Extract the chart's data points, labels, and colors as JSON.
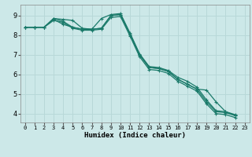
{
  "xlabel": "Humidex (Indice chaleur)",
  "x_ticks": [
    0,
    1,
    2,
    3,
    4,
    5,
    6,
    7,
    8,
    9,
    10,
    11,
    12,
    13,
    14,
    15,
    16,
    17,
    18,
    19,
    20,
    21,
    22,
    23
  ],
  "y_ticks": [
    4,
    5,
    6,
    7,
    8,
    9
  ],
  "xlim": [
    -0.5,
    23.5
  ],
  "ylim": [
    3.55,
    9.55
  ],
  "bg_color": "#cce8e8",
  "grid_color": "#b8d8d8",
  "line_color": "#1a7a6a",
  "series": [
    [
      8.4,
      8.4,
      8.4,
      8.8,
      8.55,
      8.4,
      8.3,
      8.3,
      8.35,
      9.0,
      9.05,
      8.05,
      7.0,
      6.35,
      6.3,
      6.15,
      5.75,
      5.5,
      5.25,
      4.6,
      4.1,
      4.05,
      3.9
    ],
    [
      8.4,
      8.4,
      8.4,
      8.85,
      8.8,
      8.75,
      8.35,
      8.3,
      8.85,
      9.05,
      9.1,
      8.1,
      7.05,
      6.4,
      6.35,
      6.2,
      5.85,
      5.65,
      5.35,
      4.7,
      4.15,
      4.1,
      3.95
    ],
    [
      8.4,
      8.4,
      8.4,
      8.85,
      8.7,
      8.4,
      8.3,
      8.3,
      8.35,
      9.0,
      9.05,
      8.05,
      7.0,
      6.35,
      6.3,
      6.15,
      5.75,
      5.5,
      5.25,
      5.2,
      4.6,
      4.1,
      3.9
    ],
    [
      8.4,
      8.4,
      8.4,
      8.75,
      8.65,
      8.35,
      8.25,
      8.25,
      8.3,
      8.9,
      8.95,
      7.95,
      6.9,
      6.25,
      6.2,
      6.05,
      5.65,
      5.4,
      5.15,
      4.5,
      4.0,
      3.95,
      3.8
    ]
  ],
  "x_values": [
    0,
    1,
    2,
    3,
    4,
    5,
    6,
    7,
    8,
    9,
    10,
    11,
    12,
    13,
    14,
    15,
    16,
    17,
    18,
    19,
    20,
    21,
    22
  ]
}
